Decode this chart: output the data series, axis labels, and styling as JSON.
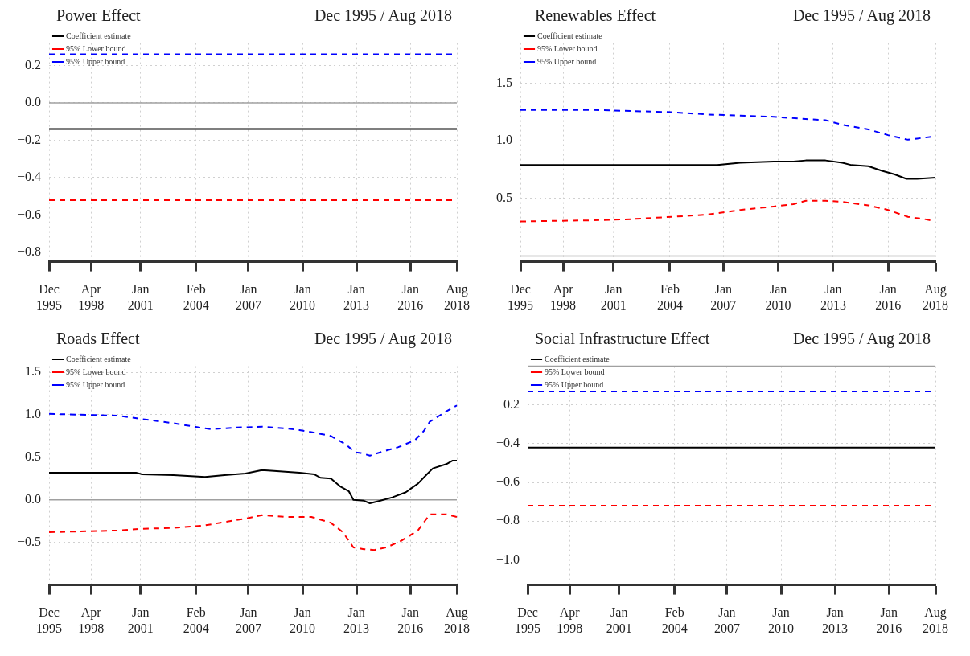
{
  "chart_data": [
    {
      "type": "line",
      "title": "Power Effect",
      "subtitle": "Dec 1995 / Aug 2018",
      "legend": "top left",
      "grid": true,
      "marker": "none",
      "xlim": [
        "1995-12",
        "2018-08"
      ],
      "ylim": [
        -0.85,
        0.32
      ],
      "yticks": [
        0.2,
        {
          "value": 0.0,
          "label": "0.0"
        },
        -0.2,
        -0.4,
        -0.6,
        -0.8
      ],
      "xticks": [
        {
          "value": "1995-12",
          "label": "Dec 1995"
        },
        {
          "value": "1998-04",
          "label": "Apr 1998"
        },
        {
          "value": "2001-01",
          "label": "Jan 2001"
        },
        {
          "value": "2004-02",
          "label": "Feb 2004"
        },
        {
          "value": "2007-01",
          "label": "Jan 2007"
        },
        {
          "value": "2010-01",
          "label": "Jan 2010"
        },
        {
          "value": "2013-01",
          "label": "Jan 2013"
        },
        {
          "value": "2016-01",
          "label": "Jan 2016"
        },
        {
          "value": "2018-08",
          "label": "Aug 2018"
        }
      ],
      "ref_lines": [
        {
          "axis": "y",
          "value": 0,
          "color": "#a0a0a0"
        }
      ],
      "series": [
        {
          "name": "Coefficient estimate",
          "color": "#000000",
          "line_style": "solid",
          "x": [
            "1995-12",
            "2018-08"
          ],
          "values": [
            -0.14,
            -0.14
          ]
        },
        {
          "name": "95% Lower bound",
          "color": "#ff0000",
          "line_style": "dashed",
          "x": [
            "1995-12",
            "2018-08"
          ],
          "values": [
            -0.52,
            -0.52
          ]
        },
        {
          "name": "95% Upper bound",
          "color": "#0000ff",
          "line_style": "dashed",
          "x": [
            "1995-12",
            "2018-08"
          ],
          "values": [
            0.26,
            0.26
          ]
        }
      ]
    },
    {
      "type": "line",
      "title": "Renewables Effect",
      "subtitle": "Dec 1995 / Aug 2018",
      "legend": "top left",
      "grid": true,
      "marker": "none",
      "xlim": [
        "1995-12",
        "2018-08"
      ],
      "ylim": [
        -0.05,
        1.85
      ],
      "yticks": [
        1.5,
        {
          "value": 1.0,
          "label": "1.0"
        },
        0.5
      ],
      "xticks": [
        {
          "value": "1995-12",
          "label": "Dec 1995"
        },
        {
          "value": "1998-04",
          "label": "Apr 1998"
        },
        {
          "value": "2001-01",
          "label": "Jan 2001"
        },
        {
          "value": "2004-02",
          "label": "Feb 2004"
        },
        {
          "value": "2007-01",
          "label": "Jan 2007"
        },
        {
          "value": "2010-01",
          "label": "Jan 2010"
        },
        {
          "value": "2013-01",
          "label": "Jan 2013"
        },
        {
          "value": "2016-01",
          "label": "Jan 2016"
        },
        {
          "value": "2018-08",
          "label": "Aug 2018"
        }
      ],
      "ref_lines": [
        {
          "axis": "y",
          "value": 0,
          "color": "#a0a0a0"
        }
      ],
      "series": [
        {
          "name": "Coefficient estimate",
          "color": "#000000",
          "line_style": "solid",
          "x": [
            "1995-12",
            "2006-09",
            "2007-12",
            "2009-10",
            "2010-11",
            "2011-07",
            "2012-08",
            "2013-07",
            "2014-01",
            "2014-12",
            "2015-09",
            "2016-05",
            "2017-01",
            "2017-08",
            "2018-08"
          ],
          "values": [
            0.79,
            0.79,
            0.81,
            0.82,
            0.82,
            0.83,
            0.83,
            0.81,
            0.79,
            0.78,
            0.74,
            0.71,
            0.67,
            0.67,
            0.68
          ]
        },
        {
          "name": "95% Lower bound",
          "color": "#ff0000",
          "line_style": "dashed",
          "x": [
            "1995-12",
            "1999-11",
            "2002-01",
            "2004-03",
            "2006-03",
            "2007-12",
            "2009-10",
            "2010-11",
            "2011-07",
            "2012-08",
            "2013-07",
            "2014-12",
            "2016-01",
            "2017-02",
            "2018-01",
            "2018-08"
          ],
          "values": [
            0.3,
            0.31,
            0.32,
            0.34,
            0.36,
            0.4,
            0.43,
            0.45,
            0.48,
            0.48,
            0.47,
            0.44,
            0.4,
            0.34,
            0.32,
            0.3
          ]
        },
        {
          "name": "95% Upper bound",
          "color": "#0000ff",
          "line_style": "dashed",
          "x": [
            "1995-12",
            "1999-11",
            "2002-01",
            "2004-03",
            "2006-03",
            "2007-12",
            "2009-10",
            "2011-07",
            "2012-08",
            "2013-07",
            "2014-12",
            "2016-01",
            "2017-02",
            "2017-08",
            "2018-08"
          ],
          "values": [
            1.27,
            1.27,
            1.26,
            1.25,
            1.23,
            1.22,
            1.21,
            1.19,
            1.18,
            1.14,
            1.1,
            1.05,
            1.01,
            1.02,
            1.04
          ]
        }
      ]
    },
    {
      "type": "line",
      "title": "Roads Effect",
      "subtitle": "Dec 1995 / Aug 2018",
      "legend": "top left",
      "grid": true,
      "marker": "none",
      "xlim": [
        "1995-12",
        "2018-08"
      ],
      "ylim": [
        -1.0,
        1.57
      ],
      "yticks": [
        1.5,
        {
          "value": 1.0,
          "label": "1.0"
        },
        0.5,
        {
          "value": 0.0,
          "label": "0.0"
        },
        -0.5
      ],
      "xticks": [
        {
          "value": "1995-12",
          "label": "Dec 1995"
        },
        {
          "value": "1998-04",
          "label": "Apr 1998"
        },
        {
          "value": "2001-01",
          "label": "Jan 2001"
        },
        {
          "value": "2004-02",
          "label": "Feb 2004"
        },
        {
          "value": "2007-01",
          "label": "Jan 2007"
        },
        {
          "value": "2010-01",
          "label": "Jan 2010"
        },
        {
          "value": "2013-01",
          "label": "Jan 2013"
        },
        {
          "value": "2016-01",
          "label": "Jan 2016"
        },
        {
          "value": "2018-08",
          "label": "Aug 2018"
        }
      ],
      "ref_lines": [
        {
          "axis": "y",
          "value": 0,
          "color": "#a0a0a0"
        }
      ],
      "series": [
        {
          "name": "Coefficient estimate",
          "color": "#000000",
          "line_style": "solid",
          "x": [
            "1995-12",
            "2000-10",
            "2001-02",
            "2002-11",
            "2004-08",
            "2005-09",
            "2006-11",
            "2007-10",
            "2008-06",
            "2009-11",
            "2010-09",
            "2011-01",
            "2011-08",
            "2012-02",
            "2012-08",
            "2012-11",
            "2013-06",
            "2013-10",
            "2014-05",
            "2015-01",
            "2015-10",
            "2016-06",
            "2016-12",
            "2017-04",
            "2018-01",
            "2018-05",
            "2018-08"
          ],
          "values": [
            0.32,
            0.32,
            0.3,
            0.29,
            0.27,
            0.29,
            0.31,
            0.35,
            0.34,
            0.32,
            0.3,
            0.26,
            0.25,
            0.16,
            0.1,
            0.0,
            -0.01,
            -0.04,
            -0.01,
            0.03,
            0.09,
            0.19,
            0.3,
            0.37,
            0.42,
            0.46,
            0.46
          ]
        },
        {
          "name": "95% Lower bound",
          "color": "#ff0000",
          "line_style": "dashed",
          "x": [
            "1995-12",
            "1999-10",
            "2001-02",
            "2002-11",
            "2004-08",
            "2005-09",
            "2006-11",
            "2007-10",
            "2009-02",
            "2010-07",
            "2011-08",
            "2012-04",
            "2012-11",
            "2013-06",
            "2014-01",
            "2014-09",
            "2015-07",
            "2016-06",
            "2017-02",
            "2018-01",
            "2018-08"
          ],
          "values": [
            -0.38,
            -0.36,
            -0.34,
            -0.33,
            -0.3,
            -0.26,
            -0.22,
            -0.18,
            -0.2,
            -0.2,
            -0.27,
            -0.38,
            -0.56,
            -0.58,
            -0.59,
            -0.56,
            -0.48,
            -0.36,
            -0.17,
            -0.17,
            -0.2
          ]
        },
        {
          "name": "95% Upper bound",
          "color": "#0000ff",
          "line_style": "dashed",
          "x": [
            "1995-12",
            "1999-10",
            "2001-02",
            "2002-11",
            "2004-08",
            "2004-12",
            "2006-05",
            "2007-10",
            "2009-02",
            "2009-11",
            "2010-09",
            "2011-08",
            "2012-06",
            "2012-12",
            "2013-04",
            "2013-10",
            "2014-07",
            "2015-05",
            "2016-04",
            "2016-10",
            "2017-02",
            "2018-01",
            "2018-08"
          ],
          "values": [
            1.01,
            0.99,
            0.95,
            0.9,
            0.84,
            0.83,
            0.85,
            0.86,
            0.84,
            0.82,
            0.79,
            0.75,
            0.65,
            0.56,
            0.55,
            0.52,
            0.57,
            0.62,
            0.7,
            0.81,
            0.92,
            1.04,
            1.11
          ]
        }
      ]
    },
    {
      "type": "line",
      "title": "Social Infrastructure Effect",
      "subtitle": "Dec 1995 / Aug 2018",
      "legend": "top left",
      "grid": true,
      "marker": "none",
      "xlim": [
        "1995-12",
        "2018-08"
      ],
      "ylim": [
        -1.13,
        0.0
      ],
      "yticks": [
        -0.2,
        -0.4,
        -0.6,
        -0.8,
        {
          "value": -1.0,
          "label": "−1.0"
        }
      ],
      "xticks": [
        {
          "value": "1995-12",
          "label": "Dec 1995"
        },
        {
          "value": "1998-04",
          "label": "Apr 1998"
        },
        {
          "value": "2001-01",
          "label": "Jan 2001"
        },
        {
          "value": "2004-02",
          "label": "Feb 2004"
        },
        {
          "value": "2007-01",
          "label": "Jan 2007"
        },
        {
          "value": "2010-01",
          "label": "Jan 2010"
        },
        {
          "value": "2013-01",
          "label": "Jan 2013"
        },
        {
          "value": "2016-01",
          "label": "Jan 2016"
        },
        {
          "value": "2018-08",
          "label": "Aug 2018"
        }
      ],
      "ref_lines": [
        {
          "axis": "y",
          "value": 0,
          "color": "#a0a0a0"
        }
      ],
      "series": [
        {
          "name": "Coefficient estimate",
          "color": "#000000",
          "line_style": "solid",
          "x": [
            "1995-12",
            "2018-08"
          ],
          "values": [
            -0.42,
            -0.42
          ]
        },
        {
          "name": "95% Lower bound",
          "color": "#ff0000",
          "line_style": "dashed",
          "x": [
            "1995-12",
            "2018-08"
          ],
          "values": [
            -0.72,
            -0.72
          ]
        },
        {
          "name": "95% Upper bound",
          "color": "#0000ff",
          "line_style": "dashed",
          "x": [
            "1995-12",
            "2018-08"
          ],
          "values": [
            -0.13,
            -0.13
          ]
        }
      ]
    }
  ]
}
